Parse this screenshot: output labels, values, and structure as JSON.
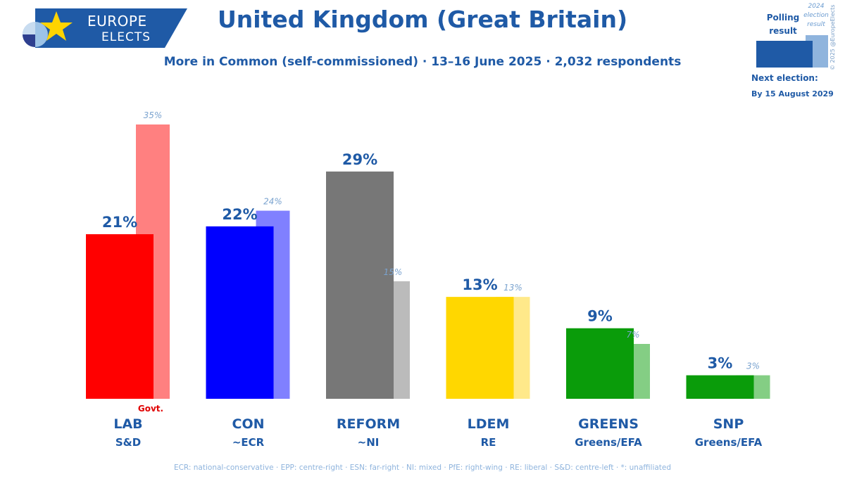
{
  "logo": {
    "line1": "EUROPE",
    "line2": "ELECTS",
    "color": "#1f5aa6"
  },
  "title": "United Kingdom (Great Britain)",
  "subtitle": "More in Common (self-commissioned) · 13–16 June 2025 · 2,032 respondents",
  "legend": {
    "polling_label": "Polling result",
    "previous_label": "2024 election result",
    "copyright": "© 2025 @EuropeElects",
    "next_election_label": "Next election:",
    "next_election_date": "By 15 August 2029"
  },
  "footer": "ECR: national-conservative · EPP: centre-right · ESN: far-right · NI: mixed · PfE: right-wing · RE: liberal · S&D: centre-left · *: unaffiliated",
  "chart_data": {
    "type": "bar",
    "value_suffix": "%",
    "ylim": [
      0,
      35
    ],
    "series": [
      {
        "name": "Polling result",
        "values": [
          21,
          22,
          29,
          13,
          9,
          3
        ]
      },
      {
        "name": "2024 election result",
        "values": [
          35,
          24,
          15,
          13,
          7,
          3
        ]
      }
    ],
    "parties": [
      {
        "name": "LAB",
        "group": "S&D",
        "poll": 21,
        "prev": 35,
        "color": "#ff0000",
        "prev_color": "#ff8080",
        "note": "Govt."
      },
      {
        "name": "CON",
        "group": "~ECR",
        "poll": 22,
        "prev": 24,
        "color": "#0000ff",
        "prev_color": "#8080ff",
        "note": ""
      },
      {
        "name": "REFORM",
        "group": "~NI",
        "poll": 29,
        "prev": 15,
        "color": "#777777",
        "prev_color": "#bbbbbb",
        "note": ""
      },
      {
        "name": "LDEM",
        "group": "RE",
        "poll": 13,
        "prev": 13,
        "color": "#ffd700",
        "prev_color": "#ffe98a",
        "note": ""
      },
      {
        "name": "GREENS",
        "group": "Greens/EFA",
        "poll": 9,
        "prev": 7,
        "color": "#0a9c0a",
        "prev_color": "#84ce84",
        "note": ""
      },
      {
        "name": "SNP",
        "group": "Greens/EFA",
        "poll": 3,
        "prev": 3,
        "color": "#0a9c0a",
        "prev_color": "#84ce84",
        "note": ""
      }
    ],
    "note_color": "#e00000",
    "label_color": "#1f5aa6",
    "prev_label_color": "#7aa3cf"
  }
}
